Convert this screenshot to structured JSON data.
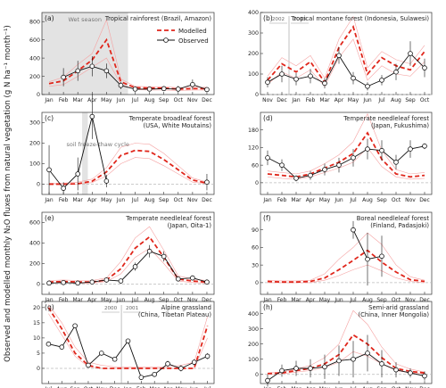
{
  "figure": {
    "ylabel": "Observed and modelled monthly N₂O fluxes from natural vegetation (g N ha⁻¹ month⁻¹)",
    "legend": {
      "modelled": "Modelled",
      "observed": "Observed",
      "position": "top-right of panel (a)"
    },
    "colors": {
      "modelled": "#e0261b",
      "range": "#f5a3a3",
      "observed": "#111111",
      "shade": "#e3e3e3"
    }
  },
  "chart_data": [
    {
      "type": "line",
      "panel": "a",
      "label": "(a)",
      "title": "Tropical rainforest (Brazil, Amazon)",
      "x": [
        "Jan",
        "Feb",
        "Mar",
        "Apr",
        "May",
        "Jun",
        "Jul",
        "Aug",
        "Sep",
        "Oct",
        "Nov",
        "Dec"
      ],
      "ylim": [
        0,
        900
      ],
      "yticks": [
        0,
        200,
        400,
        600,
        800
      ],
      "shade": {
        "from": "Jan",
        "to": "Jun",
        "label": "Wet season"
      },
      "series": [
        {
          "name": "Modelled",
          "values": [
            120,
            150,
            260,
            380,
            600,
            140,
            75,
            70,
            70,
            60,
            65,
            65
          ]
        },
        {
          "name": "range-upper",
          "values": [
            140,
            190,
            330,
            450,
            820,
            170,
            90,
            85,
            85,
            75,
            80,
            80
          ]
        },
        {
          "name": "range-lower",
          "values": [
            90,
            110,
            200,
            300,
            400,
            110,
            55,
            50,
            50,
            45,
            50,
            50
          ]
        },
        {
          "name": "Observed",
          "values": [
            null,
            190,
            260,
            310,
            260,
            100,
            60,
            60,
            65,
            60,
            110,
            55
          ],
          "err": [
            0,
            100,
            110,
            110,
            80,
            40,
            25,
            20,
            25,
            35,
            55,
            20
          ]
        }
      ]
    },
    {
      "type": "line",
      "panel": "b",
      "label": "(b)",
      "title": "Tropical montane forest (Indonesia, Sulawesi)",
      "x": [
        "Nov",
        "Dec",
        "Jan",
        "Feb",
        "Mar",
        "Apr",
        "May",
        "Jun",
        "Jul",
        "Aug",
        "Sep",
        "Oct"
      ],
      "ylim": [
        0,
        400
      ],
      "yticks": [
        0,
        100,
        200,
        300,
        400
      ],
      "yearline": {
        "after": "Dec",
        "labels": [
          "2002",
          "2003"
        ]
      },
      "series": [
        {
          "name": "Modelled",
          "values": [
            70,
            150,
            110,
            160,
            60,
            230,
            330,
            100,
            180,
            140,
            120,
            210
          ]
        },
        {
          "name": "range-upper",
          "values": [
            90,
            180,
            140,
            190,
            80,
            270,
            380,
            130,
            210,
            170,
            150,
            240
          ]
        },
        {
          "name": "range-lower",
          "values": [
            50,
            110,
            80,
            120,
            40,
            180,
            270,
            70,
            140,
            100,
            90,
            160
          ]
        },
        {
          "name": "Observed",
          "values": [
            60,
            100,
            75,
            90,
            55,
            190,
            80,
            40,
            70,
            110,
            200,
            130
          ],
          "err": [
            25,
            40,
            30,
            35,
            25,
            40,
            30,
            20,
            25,
            40,
            60,
            45
          ]
        }
      ]
    },
    {
      "type": "line",
      "panel": "c",
      "label": "(c)",
      "title": "Temperate broadleaf forest (USA, White Moutains)",
      "x": [
        "Jan",
        "Feb",
        "Mar",
        "Apr",
        "May",
        "Jun",
        "Jul",
        "Aug",
        "Sep",
        "Oct",
        "Nov",
        "Dec"
      ],
      "ylim": [
        -50,
        350
      ],
      "yticks": [
        0,
        100,
        200,
        300
      ],
      "shade": {
        "from": "Mar",
        "to": "Apr",
        "label": "soil freeze-thaw cycle"
      },
      "series": [
        {
          "name": "Modelled",
          "values": [
            0,
            0,
            2,
            15,
            60,
            140,
            165,
            160,
            120,
            70,
            20,
            5
          ]
        },
        {
          "name": "range-upper",
          "values": [
            5,
            5,
            10,
            25,
            80,
            180,
            200,
            195,
            150,
            90,
            30,
            10
          ]
        },
        {
          "name": "range-lower",
          "values": [
            0,
            0,
            0,
            8,
            40,
            100,
            130,
            125,
            90,
            50,
            10,
            2
          ]
        },
        {
          "name": "Observed",
          "values": [
            70,
            -20,
            50,
            330,
            15,
            null,
            null,
            null,
            null,
            null,
            null,
            10
          ],
          "err": [
            120,
            30,
            80,
            110,
            30,
            0,
            0,
            0,
            0,
            0,
            0,
            40
          ]
        }
      ]
    },
    {
      "type": "line",
      "panel": "d",
      "label": "(d)",
      "title": "Temperate needleleaf forest (Japan, Fukushima)",
      "x": [
        "Jan",
        "Feb",
        "Mar",
        "Apr",
        "May",
        "Jun",
        "Jul",
        "Aug",
        "Sep",
        "Oct",
        "Nov",
        "Dec"
      ],
      "ylim": [
        -40,
        240
      ],
      "yticks": [
        0,
        60,
        120,
        180
      ],
      "series": [
        {
          "name": "Modelled",
          "values": [
            30,
            25,
            20,
            30,
            50,
            70,
            100,
            170,
            80,
            30,
            20,
            25
          ]
        },
        {
          "name": "range-upper",
          "values": [
            40,
            35,
            30,
            40,
            65,
            95,
            140,
            235,
            110,
            45,
            30,
            35
          ]
        },
        {
          "name": "range-lower",
          "values": [
            20,
            15,
            12,
            20,
            35,
            50,
            70,
            120,
            55,
            20,
            12,
            15
          ]
        },
        {
          "name": "Observed",
          "values": [
            85,
            60,
            15,
            25,
            45,
            60,
            85,
            115,
            110,
            70,
            115,
            125
          ],
          "err": [
            25,
            20,
            10,
            15,
            20,
            25,
            30,
            35,
            35,
            25,
            30,
            10
          ]
        }
      ]
    },
    {
      "type": "line",
      "panel": "e",
      "label": "(e)",
      "title": "Temperate needleleaf forest (Japan, Oita-1)",
      "x": [
        "Jan",
        "Feb",
        "Mar",
        "Apr",
        "May",
        "Jun",
        "Jul",
        "Aug",
        "Sep",
        "Oct",
        "Nov",
        "Dec"
      ],
      "ylim": [
        -100,
        700
      ],
      "yticks": [
        0,
        200,
        400,
        600
      ],
      "series": [
        {
          "name": "Modelled",
          "values": [
            20,
            25,
            20,
            20,
            40,
            150,
            350,
            460,
            260,
            50,
            30,
            20
          ]
        },
        {
          "name": "range-upper",
          "values": [
            35,
            40,
            35,
            35,
            60,
            220,
            450,
            560,
            330,
            80,
            50,
            35
          ]
        },
        {
          "name": "range-lower",
          "values": [
            10,
            15,
            10,
            10,
            25,
            100,
            260,
            350,
            200,
            30,
            15,
            10
          ]
        },
        {
          "name": "Observed",
          "values": [
            10,
            15,
            10,
            20,
            40,
            30,
            170,
            320,
            270,
            50,
            60,
            20
          ],
          "err": [
            15,
            15,
            10,
            15,
            25,
            15,
            40,
            60,
            50,
            25,
            25,
            15
          ]
        }
      ]
    },
    {
      "type": "line",
      "panel": "f",
      "label": "(f)",
      "title": "Boreal needleleaf forest (Finland, Padasjoki)",
      "x": [
        "Jan",
        "Feb",
        "Mar",
        "Apr",
        "May",
        "Jun",
        "Jul",
        "Aug",
        "Sep",
        "Oct",
        "Nov",
        "Dec"
      ],
      "ylim": [
        -20,
        120
      ],
      "yticks": [
        0,
        30,
        60,
        90
      ],
      "series": [
        {
          "name": "Modelled",
          "values": [
            2,
            1,
            1,
            2,
            8,
            22,
            38,
            55,
            35,
            18,
            5,
            2
          ]
        },
        {
          "name": "range-upper",
          "values": [
            4,
            3,
            3,
            4,
            15,
            40,
            60,
            85,
            65,
            30,
            10,
            4
          ]
        },
        {
          "name": "range-lower",
          "values": [
            0,
            0,
            0,
            0,
            4,
            12,
            22,
            30,
            20,
            8,
            2,
            0
          ]
        },
        {
          "name": "Observed",
          "values": [
            null,
            null,
            null,
            null,
            null,
            null,
            90,
            40,
            45,
            null,
            null,
            null
          ],
          "err": [
            0,
            0,
            0,
            0,
            0,
            0,
            15,
            45,
            35,
            0,
            0,
            0
          ]
        }
      ]
    },
    {
      "type": "line",
      "panel": "g",
      "label": "(g)",
      "title": "Alpine grassland (China, Tibetan Plateau)",
      "x": [
        "Jul",
        "Aug",
        "Sep",
        "Oct",
        "Nov",
        "Dec",
        "Jan",
        "Feb",
        "Mar",
        "Apr",
        "May",
        "Jun",
        "Jul"
      ],
      "ylim": [
        -5,
        22
      ],
      "yticks": [
        0,
        5,
        10,
        15,
        20
      ],
      "yearline": {
        "after": "Dec",
        "labels": [
          "2000",
          "2001"
        ]
      },
      "series": [
        {
          "name": "Modelled",
          "values": [
            20,
            13,
            5,
            1,
            0,
            0,
            0,
            0,
            0,
            0,
            0,
            0,
            14
          ]
        },
        {
          "name": "range-upper",
          "values": [
            21,
            15,
            7,
            2,
            1,
            0.5,
            0.5,
            0.5,
            0.5,
            0.5,
            1,
            2,
            17
          ]
        },
        {
          "name": "range-lower",
          "values": [
            18,
            11,
            4,
            0.5,
            0,
            0,
            0,
            0,
            0,
            0,
            0,
            0,
            10
          ]
        },
        {
          "name": "Observed",
          "values": [
            8,
            7,
            14,
            1,
            5,
            3,
            9,
            -3,
            -2,
            1.5,
            0,
            2,
            4
          ],
          "err": [
            0,
            0,
            0,
            0,
            0,
            0,
            0,
            0,
            0,
            1,
            1,
            1,
            1
          ]
        }
      ]
    },
    {
      "type": "line",
      "panel": "h",
      "label": "(h)",
      "title": "Semi-arid grassland (China, Inner Mongolia)",
      "x": [
        "Jan",
        "Feb",
        "Mar",
        "Apr",
        "May",
        "Jun",
        "Jul",
        "Aug",
        "Sep",
        "Oct",
        "Nov",
        "Dec"
      ],
      "ylim": [
        -60,
        480
      ],
      "yticks": [
        0,
        100,
        200,
        300,
        400
      ],
      "series": [
        {
          "name": "Modelled",
          "values": [
            5,
            10,
            25,
            40,
            70,
            130,
            260,
            200,
            110,
            40,
            20,
            10
          ]
        },
        {
          "name": "range-upper",
          "values": [
            10,
            15,
            35,
            60,
            110,
            200,
            420,
            330,
            180,
            70,
            35,
            15
          ]
        },
        {
          "name": "range-lower",
          "values": [
            2,
            5,
            15,
            25,
            45,
            80,
            150,
            120,
            70,
            25,
            10,
            5
          ]
        },
        {
          "name": "Observed",
          "values": [
            -40,
            25,
            40,
            40,
            50,
            90,
            100,
            140,
            70,
            30,
            10,
            -10
          ],
          "err": [
            40,
            40,
            50,
            60,
            80,
            100,
            120,
            120,
            90,
            50,
            30,
            30
          ]
        }
      ]
    }
  ]
}
